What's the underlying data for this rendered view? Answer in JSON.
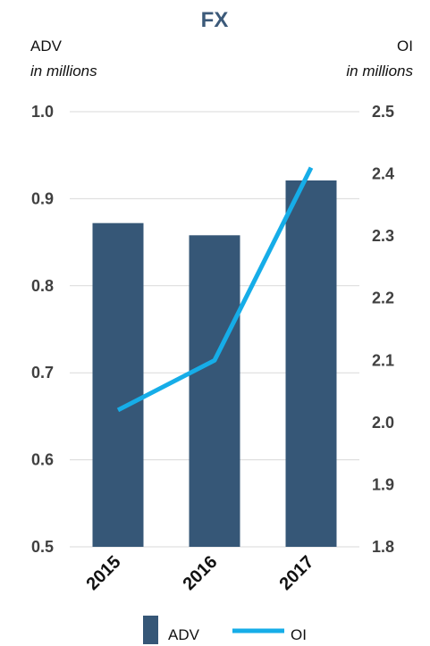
{
  "chart_data": {
    "type": "bar+line",
    "title": "FX",
    "categories": [
      "2015",
      "2016",
      "2017"
    ],
    "left_axis": {
      "label": "ADV",
      "sublabel": "in millions",
      "ylim": [
        0.5,
        1.0
      ],
      "ticks": [
        "0.5",
        "0.6",
        "0.7",
        "0.8",
        "0.9",
        "1.0"
      ]
    },
    "right_axis": {
      "label": "OI",
      "sublabel": "in millions",
      "ylim": [
        1.8,
        2.5
      ],
      "ticks": [
        "1.8",
        "1.9",
        "2.0",
        "2.1",
        "2.2",
        "2.3",
        "2.4",
        "2.5"
      ]
    },
    "series": [
      {
        "name": "ADV",
        "type": "bar",
        "axis": "left",
        "values": [
          0.872,
          0.858,
          0.921
        ]
      },
      {
        "name": "OI",
        "type": "line",
        "axis": "right",
        "values": [
          2.02,
          2.1,
          2.41
        ]
      }
    ],
    "grid": true,
    "legend_position": "bottom"
  },
  "colors": {
    "bar": "#365777",
    "line": "#16ade8",
    "title": "#3c5a7a",
    "grid": "#d9d9d9"
  }
}
